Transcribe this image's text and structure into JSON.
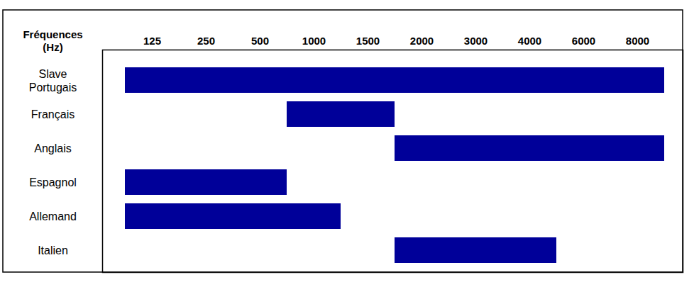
{
  "chart_data": {
    "type": "range_bar",
    "orientation": "horizontal",
    "x_label": "Fréquences\n(Hz)",
    "x": [
      125,
      250,
      500,
      1000,
      1500,
      2000,
      3000,
      4000,
      6000,
      8000
    ],
    "categories": [
      "Slave\nPortugais",
      "Français",
      "Anglais",
      "Espagnol",
      "Allemand",
      "Italien"
    ],
    "values": [
      [
        125,
        8000
      ],
      [
        1000,
        1500
      ],
      [
        2000,
        8000
      ],
      [
        125,
        500
      ],
      [
        125,
        1000
      ],
      [
        2000,
        4000
      ]
    ],
    "color": "#000099"
  }
}
